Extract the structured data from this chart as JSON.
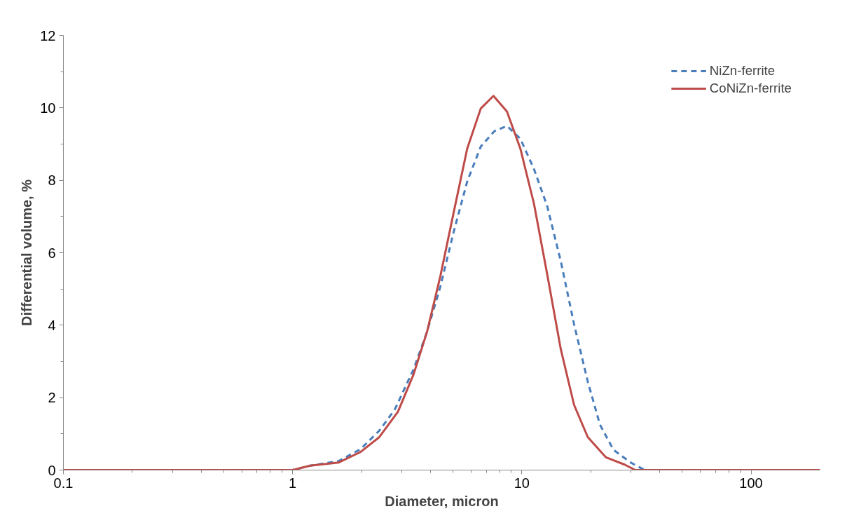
{
  "chart_data": {
    "type": "line",
    "xlabel": "Diameter, micron",
    "ylabel": "Differential volume, %",
    "log": "x",
    "xlim": [
      0.1,
      200
    ],
    "xticks": [
      0.1,
      1,
      10,
      100
    ],
    "ylim": [
      0,
      12
    ],
    "yticks": [
      0,
      2,
      4,
      6,
      8,
      10,
      12
    ],
    "grid": false,
    "legend": "top right",
    "series": [
      {
        "name": "NiZn-ferrite",
        "color": "#4a7ebb",
        "line_style": "dashed",
        "x": [
          0.1,
          1.0,
          1.19,
          1.59,
          1.98,
          2.39,
          2.79,
          3.37,
          3.86,
          4.41,
          5.05,
          5.78,
          6.62,
          7.6,
          8.61,
          9.85,
          11.3,
          12.9,
          14.8,
          16.9,
          19.4,
          21.9,
          25.1,
          29.8,
          34.4
        ],
        "values": [
          0,
          0,
          0.12,
          0.25,
          0.58,
          1.09,
          1.67,
          2.78,
          3.82,
          5.06,
          6.59,
          7.97,
          8.93,
          9.36,
          9.5,
          9.15,
          8.31,
          7.29,
          5.76,
          4.03,
          2.44,
          1.26,
          0.56,
          0.21,
          0
        ]
      },
      {
        "name": "CoNiZn-ferrite",
        "color": "#be4b48",
        "line_style": "solid",
        "x": [
          0.1,
          1.0,
          1.19,
          1.59,
          1.98,
          2.39,
          2.88,
          3.37,
          3.86,
          4.41,
          5.05,
          5.78,
          6.62,
          7.52,
          8.61,
          9.85,
          11.3,
          12.9,
          14.8,
          16.9,
          19.4,
          23.3,
          28.1,
          31.3,
          200
        ],
        "values": [
          0,
          0,
          0.12,
          0.21,
          0.5,
          0.91,
          1.61,
          2.64,
          3.82,
          5.35,
          7.13,
          8.88,
          9.98,
          10.33,
          9.9,
          8.88,
          7.35,
          5.41,
          3.33,
          1.8,
          0.91,
          0.35,
          0.15,
          0,
          0
        ]
      }
    ]
  }
}
